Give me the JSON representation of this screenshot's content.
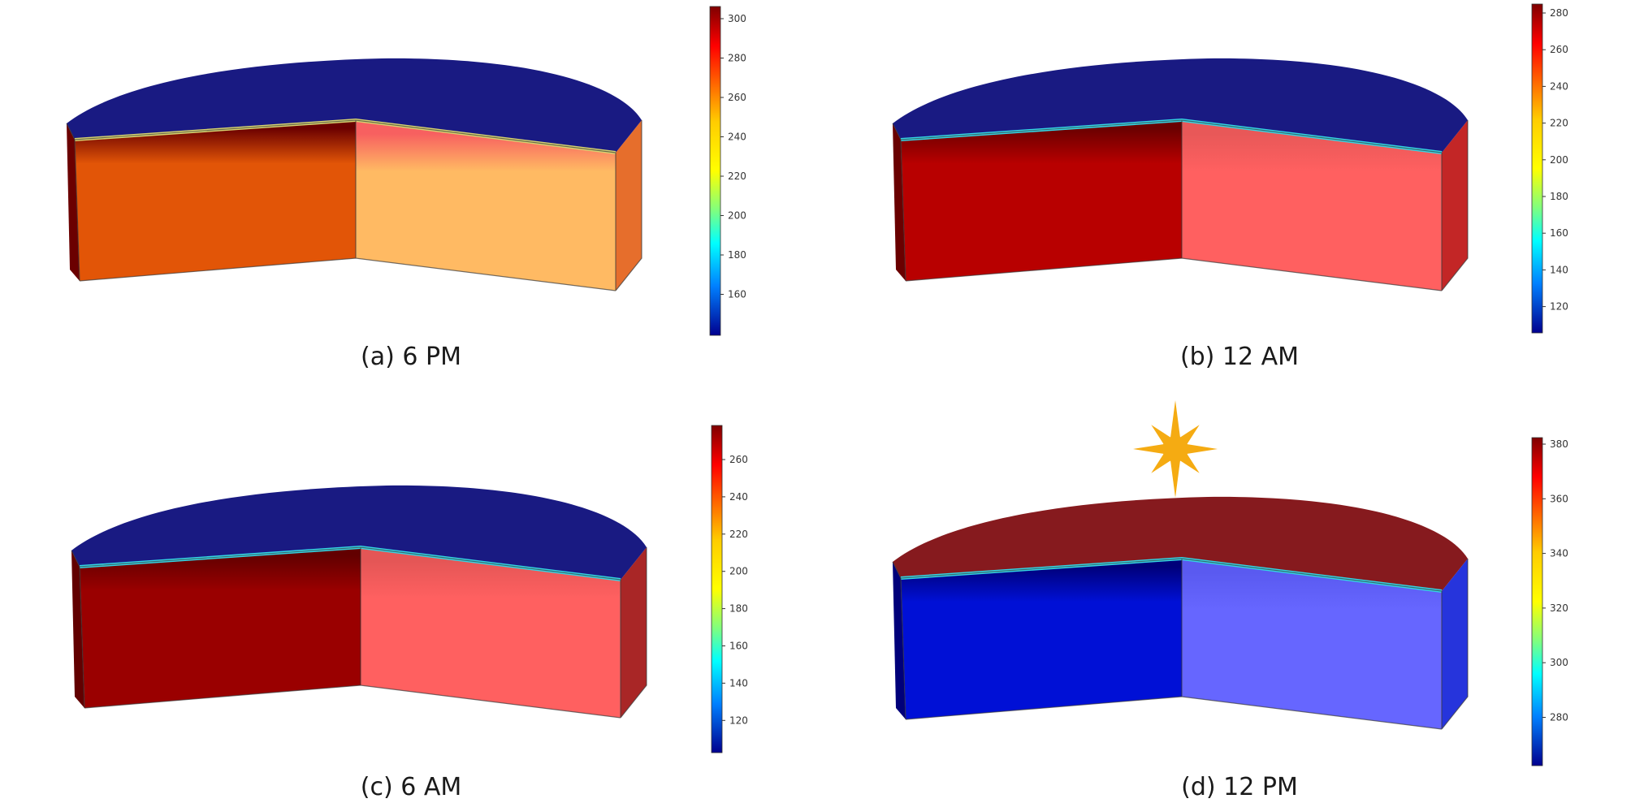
{
  "panels": [
    {
      "id": "a",
      "label": "(a) 6 PM",
      "colorbar": {
        "min": 140,
        "max": 305,
        "ticks": [
          "300",
          "280",
          "260",
          "240",
          "220",
          "200",
          "180",
          "160"
        ]
      },
      "colors": {
        "top": "#191a82",
        "band": "#6b0000",
        "left_wall": "#e25507",
        "right_wall": "#ffba63",
        "right_band": "#f76060",
        "surface_line": "#d8d470"
      }
    },
    {
      "id": "b",
      "label": "(b) 12 AM",
      "colorbar": {
        "min": 105,
        "max": 285,
        "ticks": [
          "280",
          "260",
          "240",
          "220",
          "200",
          "180",
          "160",
          "140",
          "120"
        ]
      },
      "colors": {
        "top": "#191a82",
        "band": "#6a0000",
        "left_wall": "#b80000",
        "right_wall": "#ff6060",
        "right_band": "#e85858",
        "surface_line": "#33d6e6"
      }
    },
    {
      "id": "c",
      "label": "(c) 6 AM",
      "colorbar": {
        "min": 103,
        "max": 278,
        "ticks": [
          "260",
          "240",
          "220",
          "200",
          "180",
          "160",
          "140",
          "120"
        ]
      },
      "colors": {
        "top": "#191a82",
        "band": "#620000",
        "left_wall": "#9a0000",
        "right_wall": "#ff6060",
        "right_band": "#e45656",
        "surface_line": "#33d6e6"
      }
    },
    {
      "id": "d",
      "label": "(d) 12 PM",
      "colorbar": {
        "min": 262,
        "max": 383,
        "ticks": [
          "380",
          "360",
          "340",
          "320",
          "300",
          "280"
        ]
      },
      "colors": {
        "top": "#861a1e",
        "band": "#00007a",
        "left_wall": "#0010d6",
        "right_wall": "#6666ff",
        "right_band": "#5a5af0",
        "surface_line": "#33d6e6"
      },
      "sun_icon": "sun-icon",
      "sun_color": "#f5ab12"
    }
  ]
}
